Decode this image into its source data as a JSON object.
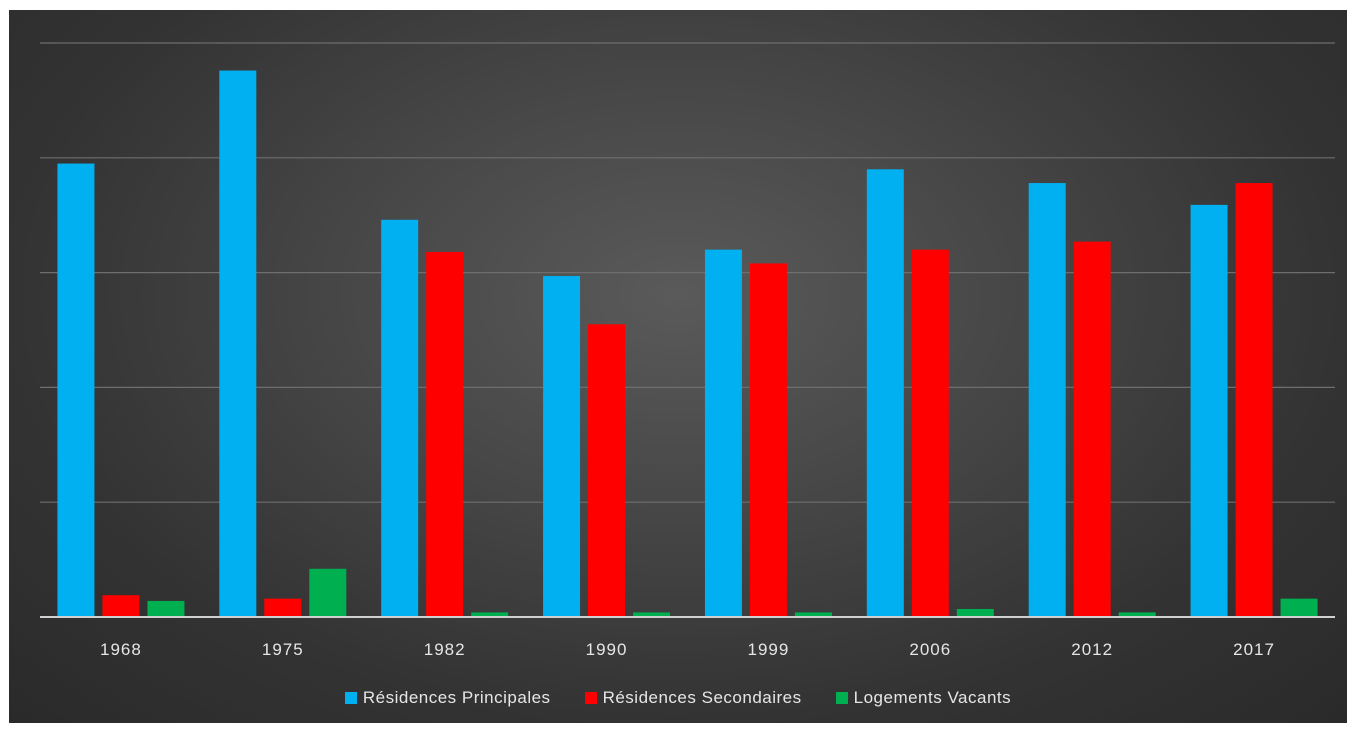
{
  "chart_data": {
    "type": "bar",
    "title": "",
    "xlabel": "",
    "ylabel": "",
    "categories": [
      "1968",
      "1975",
      "1982",
      "1990",
      "1999",
      "2006",
      "2012",
      "2017"
    ],
    "series": [
      {
        "name": "Résidences Principales",
        "color": "#00b0f0",
        "values": [
          395,
          476,
          346,
          297,
          320,
          390,
          378,
          359
        ]
      },
      {
        "name": "Résidences Secondaires",
        "color": "#ff0000",
        "values": [
          19,
          16,
          318,
          255,
          308,
          320,
          327,
          378
        ]
      },
      {
        "name": "Logements Vacants",
        "color": "#00b050",
        "values": [
          14,
          42,
          4,
          4,
          4,
          7,
          4,
          16
        ]
      }
    ],
    "ylim": [
      0,
      500
    ],
    "gridlines": [
      100,
      200,
      300,
      400,
      500
    ],
    "grid": true,
    "legend_position": "bottom"
  }
}
